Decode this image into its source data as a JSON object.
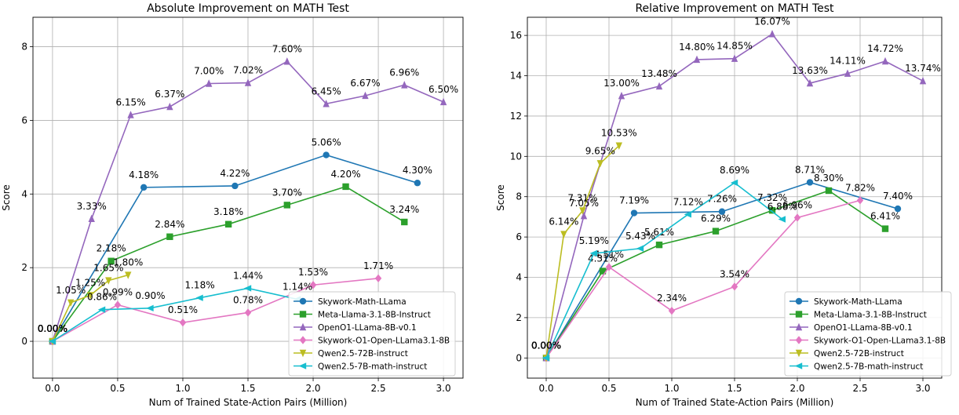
{
  "series_styles": [
    {
      "name": "Skywork-Math-LLama",
      "color": "#1f77b4",
      "marker": "circle"
    },
    {
      "name": "Meta-Llama-3.1-8B-Instruct",
      "color": "#2ca02c",
      "marker": "square"
    },
    {
      "name": "OpenO1-LLama-8B-v0.1",
      "color": "#9467bd",
      "marker": "triangle-up"
    },
    {
      "name": "Skywork-O1-Open-LLama3.1-8B",
      "color": "#e377c2",
      "marker": "diamond"
    },
    {
      "name": "Qwen2.5-72B-instruct",
      "color": "#bcbd22",
      "marker": "triangle-down"
    },
    {
      "name": "Qwen2.5-7B-math-instruct",
      "color": "#17becf",
      "marker": "triangle-left"
    }
  ],
  "chart_data": [
    {
      "type": "line",
      "title": "Absolute Improvement on MATH Test",
      "xlabel": "Num of Trained State-Action Pairs (Million)",
      "ylabel": "Score",
      "xlim": [
        -0.15,
        3.15
      ],
      "ylim": [
        -1.0,
        8.8
      ],
      "xticks": [
        0.0,
        0.5,
        1.0,
        1.5,
        2.0,
        2.5,
        3.0
      ],
      "xtick_labels": [
        "0.0",
        "0.5",
        "1.0",
        "1.5",
        "2.0",
        "2.5",
        "3.0"
      ],
      "yticks": [
        0,
        2,
        4,
        6,
        8
      ],
      "ytick_labels": [
        "0",
        "2",
        "4",
        "6",
        "8"
      ],
      "grid": true,
      "legend_position": "lower-right",
      "series": [
        {
          "name": "Skywork-Math-LLama",
          "x": [
            0.0,
            0.7,
            1.4,
            2.1,
            2.8
          ],
          "y": [
            0.0,
            4.18,
            4.22,
            5.06,
            4.3
          ],
          "labels": [
            "0.00%",
            "4.18%",
            "4.22%",
            "5.06%",
            "4.30%"
          ]
        },
        {
          "name": "Meta-Llama-3.1-8B-Instruct",
          "x": [
            0.0,
            0.45,
            0.9,
            1.35,
            1.8,
            2.25,
            2.7
          ],
          "y": [
            0.0,
            2.18,
            2.84,
            3.18,
            3.7,
            4.2,
            3.24
          ],
          "labels": [
            "0.00%",
            "2.18%",
            "2.84%",
            "3.18%",
            "3.70%",
            "4.20%",
            "3.24%"
          ]
        },
        {
          "name": "OpenO1-LLama-8B-v0.1",
          "x": [
            0.0,
            0.3,
            0.6,
            0.9,
            1.2,
            1.5,
            1.8,
            2.1,
            2.4,
            2.7,
            3.0
          ],
          "y": [
            0.0,
            3.33,
            6.15,
            6.37,
            7.0,
            7.02,
            7.6,
            6.45,
            6.67,
            6.96,
            6.5
          ],
          "labels": [
            "0.00%",
            "3.33%",
            "6.15%",
            "6.37%",
            "7.00%",
            "7.02%",
            "7.60%",
            "6.45%",
            "6.67%",
            "6.96%",
            "6.50%"
          ]
        },
        {
          "name": "Skywork-O1-Open-LLama3.1-8B",
          "x": [
            0.0,
            0.5,
            1.0,
            1.5,
            2.0,
            2.5
          ],
          "y": [
            0.0,
            0.99,
            0.51,
            0.78,
            1.53,
            1.71
          ],
          "labels": [
            "0.00%",
            "0.99%",
            "0.51%",
            "0.78%",
            "1.53%",
            "1.71%"
          ]
        },
        {
          "name": "Qwen2.5-72B-instruct",
          "x": [
            0.0,
            0.14,
            0.29,
            0.43,
            0.58
          ],
          "y": [
            0.0,
            1.05,
            1.25,
            1.65,
            1.8
          ],
          "labels": [
            "0.00%",
            "1.05%",
            "1.25%",
            "1.65%",
            "1.80%"
          ]
        },
        {
          "name": "Qwen2.5-7B-math-instruct",
          "x": [
            0.0,
            0.38,
            0.75,
            1.13,
            1.5,
            1.88
          ],
          "y": [
            0.0,
            0.86,
            0.9,
            1.18,
            1.44,
            1.14
          ],
          "labels": [
            "0.00%",
            "0.86%",
            "0.90%",
            "1.18%",
            "1.44%",
            "1.14%"
          ]
        }
      ]
    },
    {
      "type": "line",
      "title": "Relative Improvement on MATH Test",
      "xlabel": "Num of Trained State-Action Pairs (Million)",
      "ylabel": "Score",
      "xlim": [
        -0.15,
        3.15
      ],
      "ylim": [
        -1.0,
        16.9
      ],
      "xticks": [
        0.0,
        0.5,
        1.0,
        1.5,
        2.0,
        2.5,
        3.0
      ],
      "xtick_labels": [
        "0.0",
        "0.5",
        "1.0",
        "1.5",
        "2.0",
        "2.5",
        "3.0"
      ],
      "yticks": [
        0,
        2,
        4,
        6,
        8,
        10,
        12,
        14,
        16
      ],
      "ytick_labels": [
        "0",
        "2",
        "4",
        "6",
        "8",
        "10",
        "12",
        "14",
        "16"
      ],
      "grid": true,
      "legend_position": "lower-right",
      "series": [
        {
          "name": "Skywork-Math-LLama",
          "x": [
            0.0,
            0.7,
            1.4,
            2.1,
            2.8
          ],
          "y": [
            0.0,
            7.19,
            7.26,
            8.71,
            7.4
          ],
          "labels": [
            "0.00%",
            "7.19%",
            "7.26%",
            "8.71%",
            "7.40%"
          ]
        },
        {
          "name": "Meta-Llama-3.1-8B-Instruct",
          "x": [
            0.0,
            0.45,
            0.9,
            1.35,
            1.8,
            2.25,
            2.7
          ],
          "y": [
            0.0,
            4.31,
            5.61,
            6.29,
            7.32,
            8.3,
            6.41
          ],
          "labels": [
            "0.00%",
            "4.31%",
            "5.61%",
            "6.29%",
            "7.32%",
            "8.30%",
            "6.41%"
          ]
        },
        {
          "name": "OpenO1-LLama-8B-v0.1",
          "x": [
            0.0,
            0.3,
            0.6,
            0.9,
            1.2,
            1.5,
            1.8,
            2.1,
            2.4,
            2.7,
            3.0
          ],
          "y": [
            0.0,
            7.05,
            13.0,
            13.48,
            14.8,
            14.85,
            16.07,
            13.63,
            14.11,
            14.72,
            13.74
          ],
          "labels": [
            "0.00%",
            "7.05%",
            "13.00%",
            "13.48%",
            "14.80%",
            "14.85%",
            "16.07%",
            "13.63%",
            "14.11%",
            "14.72%",
            "13.74%"
          ]
        },
        {
          "name": "Skywork-O1-Open-LLama3.1-8B",
          "x": [
            0.0,
            0.5,
            1.0,
            1.5,
            2.0,
            2.5
          ],
          "y": [
            0.0,
            4.51,
            2.34,
            3.54,
            6.96,
            7.82
          ],
          "labels": [
            "0.00%",
            "4.51%",
            "2.34%",
            "3.54%",
            "6.96%",
            "7.82%"
          ]
        },
        {
          "name": "Qwen2.5-72B-instruct",
          "x": [
            0.0,
            0.14,
            0.29,
            0.43,
            0.58
          ],
          "y": [
            0.0,
            6.14,
            7.31,
            9.65,
            10.53
          ],
          "labels": [
            "0.00%",
            "6.14%",
            "7.31%",
            "9.65%",
            "10.53%"
          ]
        },
        {
          "name": "Qwen2.5-7B-math-instruct",
          "x": [
            0.0,
            0.38,
            0.75,
            1.13,
            1.5,
            1.88
          ],
          "y": [
            0.0,
            5.19,
            5.43,
            7.12,
            8.69,
            6.88
          ],
          "labels": [
            "0.00%",
            "5.19%",
            "5.43%",
            "7.12%",
            "8.69%",
            "6.88%"
          ]
        }
      ]
    }
  ]
}
